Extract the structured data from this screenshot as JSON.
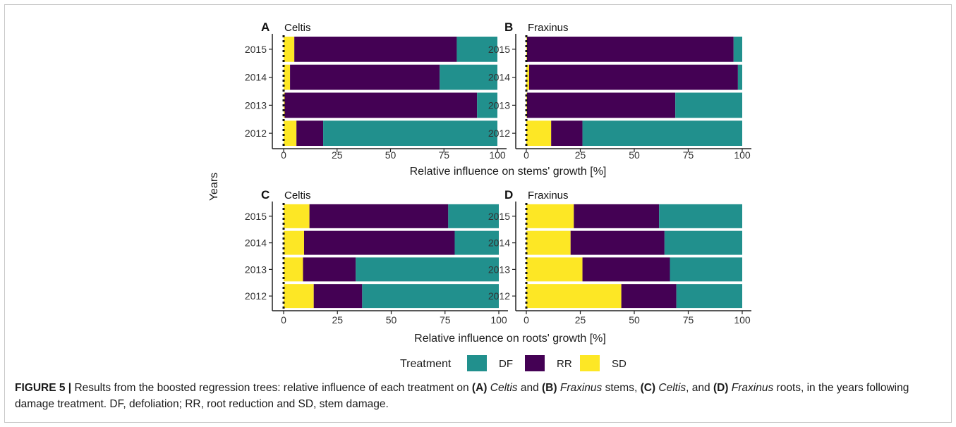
{
  "figure": {
    "y_axis_title": "Years",
    "top_xlabel": "Relative influence on stems' growth [%]",
    "bottom_xlabel": "Relative influence on roots' growth [%]",
    "legend": {
      "title": "Treatment",
      "items": [
        {
          "label": "DF",
          "color": "#21908d"
        },
        {
          "label": "RR",
          "color": "#440154"
        },
        {
          "label": "SD",
          "color": "#fde725"
        }
      ]
    }
  },
  "caption": {
    "figure_label": "FIGURE 5 |",
    "parts": [
      {
        "t": " Results from the boosted regression trees: relative influence of each treatment on ",
        "s": ""
      },
      {
        "t": "(A)",
        "s": "b"
      },
      {
        "t": " ",
        "s": ""
      },
      {
        "t": "Celtis",
        "s": "i"
      },
      {
        "t": " and ",
        "s": ""
      },
      {
        "t": "(B)",
        "s": "b"
      },
      {
        "t": " ",
        "s": ""
      },
      {
        "t": "Fraxinus",
        "s": "i"
      },
      {
        "t": " stems, ",
        "s": ""
      },
      {
        "t": "(C)",
        "s": "b"
      },
      {
        "t": " ",
        "s": ""
      },
      {
        "t": "Celtis",
        "s": "i"
      },
      {
        "t": ", and ",
        "s": ""
      },
      {
        "t": "(D)",
        "s": "b"
      },
      {
        "t": " ",
        "s": ""
      },
      {
        "t": "Fraxinus",
        "s": "i"
      },
      {
        "t": " roots, in the years following damage treatment. DF, defoliation; RR, root reduction and SD, stem damage.",
        "s": ""
      }
    ]
  },
  "chart_data": [
    {
      "type": "bar",
      "orientation": "horizontal",
      "stacked": true,
      "panel": "A",
      "title": "Celtis",
      "xlabel": "Relative influence on stems' growth [%]",
      "ylabel": "Years",
      "categories": [
        "2015",
        "2014",
        "2013",
        "2012"
      ],
      "xlim": [
        0,
        100
      ],
      "xticks": [
        0,
        25,
        50,
        75,
        100
      ],
      "series": [
        {
          "name": "SD",
          "values": [
            5,
            3,
            0.5,
            6
          ]
        },
        {
          "name": "RR",
          "values": [
            76,
            70,
            90,
            12.5
          ]
        },
        {
          "name": "DF",
          "values": [
            19,
            27,
            9.5,
            81.5
          ]
        }
      ]
    },
    {
      "type": "bar",
      "orientation": "horizontal",
      "stacked": true,
      "panel": "B",
      "title": "Fraxinus",
      "xlabel": "Relative influence on stems' growth [%]",
      "ylabel": "Years",
      "categories": [
        "2015",
        "2014",
        "2013",
        "2012"
      ],
      "xlim": [
        0,
        100
      ],
      "xticks": [
        0,
        25,
        50,
        75,
        100
      ],
      "series": [
        {
          "name": "SD",
          "values": [
            0.3,
            1.3,
            0.3,
            11.5
          ]
        },
        {
          "name": "RR",
          "values": [
            95.7,
            96.7,
            68.7,
            14.5
          ]
        },
        {
          "name": "DF",
          "values": [
            4,
            2,
            31,
            74
          ]
        }
      ]
    },
    {
      "type": "bar",
      "orientation": "horizontal",
      "stacked": true,
      "panel": "C",
      "title": "Celtis",
      "xlabel": "Relative influence on roots' growth [%]",
      "ylabel": "Years",
      "categories": [
        "2015",
        "2014",
        "2013",
        "2012"
      ],
      "xlim": [
        0,
        100
      ],
      "xticks": [
        0,
        25,
        50,
        75,
        100
      ],
      "series": [
        {
          "name": "SD",
          "values": [
            12,
            9.5,
            9,
            14
          ]
        },
        {
          "name": "RR",
          "values": [
            64.5,
            70,
            24.5,
            22.5
          ]
        },
        {
          "name": "DF",
          "values": [
            23.5,
            20.5,
            66.5,
            63.5
          ]
        }
      ]
    },
    {
      "type": "bar",
      "orientation": "horizontal",
      "stacked": true,
      "panel": "D",
      "title": "Fraxinus",
      "xlabel": "Relative influence on roots' growth [%]",
      "ylabel": "Years",
      "categories": [
        "2015",
        "2014",
        "2013",
        "2012"
      ],
      "xlim": [
        0,
        100
      ],
      "xticks": [
        0,
        25,
        50,
        75,
        100
      ],
      "series": [
        {
          "name": "SD",
          "values": [
            22,
            20.5,
            26,
            44
          ]
        },
        {
          "name": "RR",
          "values": [
            39.5,
            43.5,
            40.5,
            25.5
          ]
        },
        {
          "name": "DF",
          "values": [
            38.5,
            36,
            33.5,
            30.5
          ]
        }
      ]
    }
  ]
}
